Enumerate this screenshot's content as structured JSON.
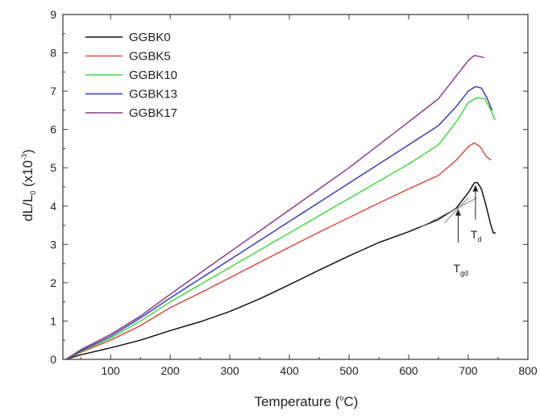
{
  "chart_data": {
    "type": "line",
    "xlabel": {
      "text": "Temperature (",
      "sup": "o",
      "tail": "C)"
    },
    "ylabel": {
      "pre": "dL/L",
      "sub": "0",
      "mid": " (x10",
      "sup": "-3",
      "tail": ")"
    },
    "xlim": [
      20,
      800
    ],
    "ylim": [
      0,
      9
    ],
    "xticks": [
      100,
      200,
      300,
      400,
      500,
      600,
      700,
      800
    ],
    "yticks": [
      0,
      1,
      2,
      3,
      4,
      5,
      6,
      7,
      8,
      9
    ],
    "grid": false,
    "legend_position": "top-left",
    "series": [
      {
        "name": "GGBK0",
        "color": "#111111",
        "points": [
          [
            25,
            0
          ],
          [
            50,
            0.12
          ],
          [
            100,
            0.3
          ],
          [
            150,
            0.5
          ],
          [
            200,
            0.75
          ],
          [
            250,
            0.98
          ],
          [
            300,
            1.25
          ],
          [
            350,
            1.58
          ],
          [
            400,
            1.95
          ],
          [
            450,
            2.33
          ],
          [
            500,
            2.7
          ],
          [
            550,
            3.05
          ],
          [
            600,
            3.33
          ],
          [
            650,
            3.65
          ],
          [
            680,
            3.95
          ],
          [
            700,
            4.35
          ],
          [
            710,
            4.6
          ],
          [
            715,
            4.62
          ],
          [
            722,
            4.45
          ],
          [
            730,
            4.0
          ],
          [
            738,
            3.5
          ],
          [
            742,
            3.3
          ],
          [
            746,
            3.3
          ]
        ]
      },
      {
        "name": "GGBK5",
        "color": "#d94f45",
        "points": [
          [
            25,
            0
          ],
          [
            50,
            0.18
          ],
          [
            100,
            0.5
          ],
          [
            150,
            0.88
          ],
          [
            200,
            1.35
          ],
          [
            250,
            1.73
          ],
          [
            300,
            2.13
          ],
          [
            350,
            2.53
          ],
          [
            400,
            2.93
          ],
          [
            450,
            3.32
          ],
          [
            500,
            3.7
          ],
          [
            550,
            4.08
          ],
          [
            600,
            4.45
          ],
          [
            650,
            4.8
          ],
          [
            680,
            5.2
          ],
          [
            700,
            5.55
          ],
          [
            710,
            5.65
          ],
          [
            720,
            5.55
          ],
          [
            730,
            5.3
          ],
          [
            738,
            5.2
          ]
        ]
      },
      {
        "name": "GGBK10",
        "color": "#45d945",
        "points": [
          [
            25,
            0
          ],
          [
            50,
            0.2
          ],
          [
            100,
            0.55
          ],
          [
            150,
            1.0
          ],
          [
            200,
            1.5
          ],
          [
            250,
            1.95
          ],
          [
            300,
            2.4
          ],
          [
            350,
            2.85
          ],
          [
            400,
            3.3
          ],
          [
            450,
            3.75
          ],
          [
            500,
            4.2
          ],
          [
            550,
            4.65
          ],
          [
            600,
            5.1
          ],
          [
            650,
            5.6
          ],
          [
            680,
            6.2
          ],
          [
            700,
            6.7
          ],
          [
            715,
            6.83
          ],
          [
            728,
            6.8
          ],
          [
            738,
            6.5
          ],
          [
            745,
            6.25
          ]
        ]
      },
      {
        "name": "GGBK13",
        "color": "#3b3bb8",
        "points": [
          [
            25,
            0
          ],
          [
            50,
            0.22
          ],
          [
            100,
            0.6
          ],
          [
            150,
            1.08
          ],
          [
            200,
            1.6
          ],
          [
            250,
            2.1
          ],
          [
            300,
            2.6
          ],
          [
            350,
            3.1
          ],
          [
            400,
            3.6
          ],
          [
            450,
            4.1
          ],
          [
            500,
            4.6
          ],
          [
            550,
            5.1
          ],
          [
            600,
            5.6
          ],
          [
            650,
            6.1
          ],
          [
            680,
            6.6
          ],
          [
            700,
            7.0
          ],
          [
            712,
            7.12
          ],
          [
            722,
            7.08
          ],
          [
            732,
            6.8
          ],
          [
            740,
            6.5
          ]
        ]
      },
      {
        "name": "GGBK17",
        "color": "#8a3c8e",
        "points": [
          [
            25,
            0
          ],
          [
            50,
            0.25
          ],
          [
            100,
            0.65
          ],
          [
            150,
            1.13
          ],
          [
            200,
            1.7
          ],
          [
            250,
            2.25
          ],
          [
            300,
            2.8
          ],
          [
            350,
            3.35
          ],
          [
            400,
            3.9
          ],
          [
            450,
            4.45
          ],
          [
            500,
            5.0
          ],
          [
            550,
            5.6
          ],
          [
            600,
            6.2
          ],
          [
            650,
            6.8
          ],
          [
            680,
            7.4
          ],
          [
            700,
            7.8
          ],
          [
            710,
            7.93
          ],
          [
            720,
            7.9
          ],
          [
            727,
            7.87
          ]
        ]
      }
    ],
    "annotations": [
      {
        "name": "T-gd",
        "label_main": "T",
        "label_sub": "gd",
        "x": 683,
        "arrow_tip_y": 3.92,
        "arrow_base_y": 3.05,
        "label_y": 2.27
      },
      {
        "name": "T-d",
        "label_main": "T",
        "label_sub": "d",
        "x": 712,
        "arrow_tip_y": 4.55,
        "arrow_base_y": 3.65,
        "label_y": 3.15
      }
    ],
    "tangent_lines": [
      [
        [
          620,
          3.45
        ],
        [
          715,
          4.22
        ]
      ],
      [
        [
          660,
          3.56
        ],
        [
          700,
          4.22
        ]
      ]
    ]
  }
}
